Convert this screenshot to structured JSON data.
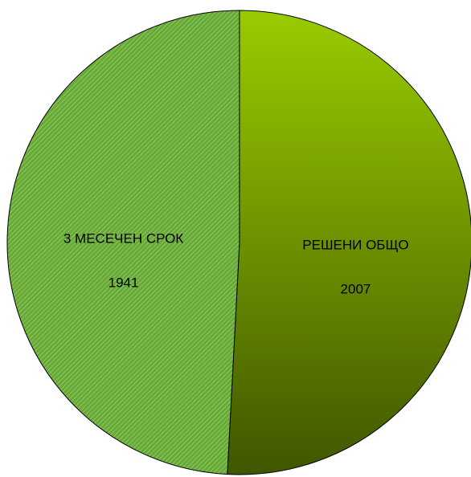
{
  "chart_data": {
    "type": "pie",
    "categories": [
      "РЕШЕНИ ОБЩО",
      "3 МЕСЕЧЕН СРОК"
    ],
    "values": [
      2007,
      1941
    ],
    "colors": [
      "#99cc00",
      "#66aa33"
    ],
    "start_angle": 0,
    "direction": "clockwise"
  }
}
